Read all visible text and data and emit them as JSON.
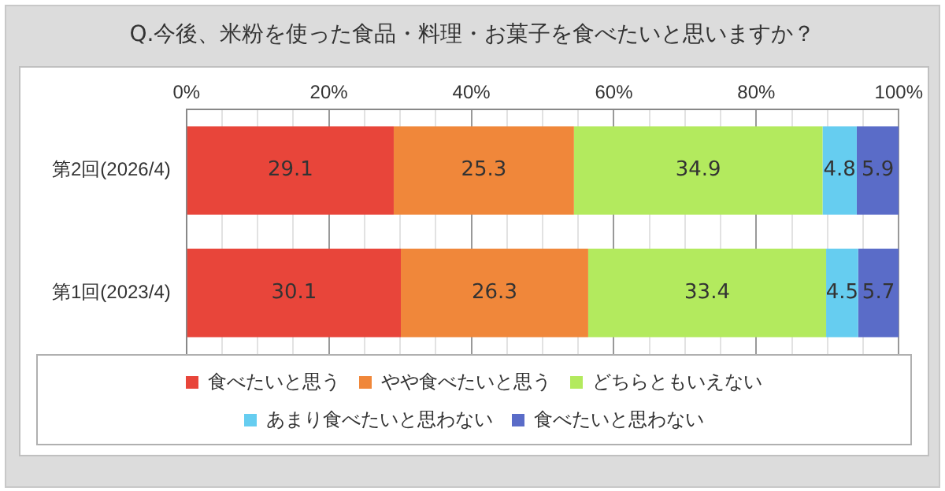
{
  "chart_data": {
    "type": "bar",
    "orientation": "horizontal",
    "stacked": true,
    "title": "Q.今後、米粉を使った食品・料理・お菓子を食べたいと思いますか？",
    "categories": [
      "第2回(2026/4)",
      "第1回(2023/4)"
    ],
    "series": [
      {
        "name": "食べたいと思う",
        "color": "#e8453a",
        "values": [
          29.1,
          30.1
        ]
      },
      {
        "name": "やや食べたいと思う",
        "color": "#f0873a",
        "values": [
          25.3,
          26.3
        ]
      },
      {
        "name": "どちらともいえない",
        "color": "#b3ea5e",
        "values": [
          34.9,
          33.4
        ]
      },
      {
        "name": "あまり食べたいと思わない",
        "color": "#66cdf0",
        "values": [
          4.8,
          4.5
        ]
      },
      {
        "name": "食べたいと思わない",
        "color": "#5a6cc8",
        "values": [
          5.9,
          5.7
        ]
      }
    ],
    "xlim": [
      0,
      100
    ],
    "xticks": [
      {
        "value": 0,
        "label": "0%"
      },
      {
        "value": 5,
        "label": null
      },
      {
        "value": 10,
        "label": null
      },
      {
        "value": 15,
        "label": null
      },
      {
        "value": 20,
        "label": "20%"
      },
      {
        "value": 25,
        "label": null
      },
      {
        "value": 30,
        "label": null
      },
      {
        "value": 35,
        "label": null
      },
      {
        "value": 40,
        "label": "40%"
      },
      {
        "value": 45,
        "label": null
      },
      {
        "value": 50,
        "label": null
      },
      {
        "value": 55,
        "label": null
      },
      {
        "value": 60,
        "label": "60%"
      },
      {
        "value": 65,
        "label": null
      },
      {
        "value": 70,
        "label": null
      },
      {
        "value": 75,
        "label": null
      },
      {
        "value": 80,
        "label": "80%"
      },
      {
        "value": 85,
        "label": null
      },
      {
        "value": 90,
        "label": null
      },
      {
        "value": 95,
        "label": null
      },
      {
        "value": 100,
        "label": "100%"
      }
    ],
    "grid": "x",
    "data_labels": true,
    "legend": "bottom"
  }
}
